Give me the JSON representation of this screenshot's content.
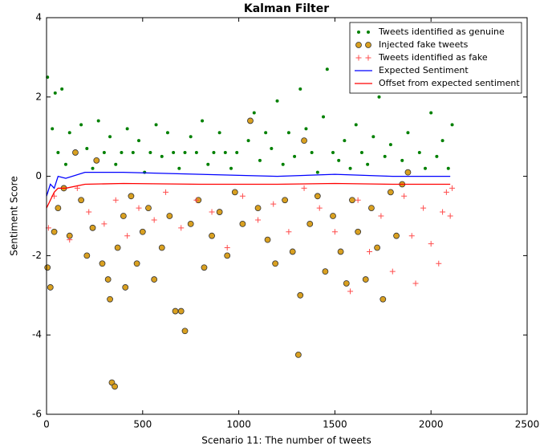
{
  "chart_data": {
    "type": "scatter",
    "title": "Kalman Filter",
    "x_label": "Scenario  11: The number of tweets",
    "y_label": "Sentiment Score",
    "xlim": [
      0,
      2500
    ],
    "xticks": [
      0,
      500,
      1000,
      1500,
      2000,
      2500
    ],
    "ylim": [
      -6,
      4
    ],
    "yticks": [
      -6,
      -4,
      -2,
      0,
      2,
      4
    ],
    "grid": false,
    "legend": "upper right",
    "series": [
      {
        "name": "Tweets identified as genuine",
        "marker": "dot",
        "color": "#008000",
        "x": [
          5,
          30,
          45,
          60,
          80,
          100,
          120,
          150,
          180,
          210,
          240,
          270,
          300,
          330,
          360,
          390,
          420,
          450,
          480,
          510,
          540,
          570,
          600,
          630,
          660,
          690,
          720,
          750,
          780,
          810,
          840,
          870,
          900,
          930,
          960,
          990,
          1050,
          1080,
          1110,
          1140,
          1170,
          1200,
          1230,
          1260,
          1290,
          1320,
          1350,
          1380,
          1410,
          1440,
          1460,
          1490,
          1520,
          1550,
          1580,
          1610,
          1640,
          1670,
          1700,
          1730,
          1760,
          1790,
          1820,
          1850,
          1880,
          1910,
          1940,
          1970,
          2000,
          2030,
          2060,
          2090,
          2110
        ],
        "values": [
          2.5,
          1.2,
          2.1,
          0.6,
          2.2,
          0.3,
          1.1,
          0.6,
          1.3,
          0.7,
          0.2,
          1.4,
          0.6,
          1.0,
          0.3,
          0.6,
          1.2,
          0.6,
          0.9,
          0.1,
          0.6,
          1.3,
          0.5,
          1.1,
          0.6,
          0.2,
          0.6,
          1.0,
          0.6,
          1.4,
          0.3,
          0.6,
          1.1,
          0.6,
          0.2,
          0.6,
          0.9,
          1.6,
          0.4,
          1.1,
          0.7,
          1.9,
          0.3,
          1.1,
          0.5,
          2.2,
          1.2,
          0.6,
          0.1,
          1.5,
          2.7,
          0.6,
          0.4,
          0.9,
          0.2,
          1.3,
          0.6,
          0.3,
          1.0,
          2.0,
          0.5,
          0.8,
          2.2,
          0.4,
          1.1,
          2.3,
          0.6,
          0.2,
          1.6,
          0.5,
          0.9,
          0.2,
          1.3
        ]
      },
      {
        "name": "Injected fake tweets",
        "marker": "circle",
        "color": "#d9a020",
        "x": [
          5,
          20,
          40,
          60,
          90,
          120,
          150,
          180,
          210,
          240,
          260,
          290,
          320,
          330,
          340,
          355,
          370,
          400,
          410,
          440,
          470,
          500,
          530,
          560,
          600,
          640,
          670,
          700,
          720,
          750,
          790,
          820,
          860,
          900,
          940,
          980,
          1020,
          1060,
          1100,
          1150,
          1190,
          1240,
          1280,
          1310,
          1320,
          1340,
          1370,
          1410,
          1450,
          1490,
          1530,
          1560,
          1590,
          1620,
          1660,
          1690,
          1720,
          1750,
          1790,
          1820,
          1850,
          1880
        ],
        "values": [
          -2.3,
          -2.8,
          -1.4,
          -0.8,
          -0.3,
          -1.5,
          0.6,
          -0.6,
          -2.0,
          -1.3,
          0.4,
          -2.2,
          -2.6,
          -3.1,
          -5.2,
          -5.3,
          -1.8,
          -1.0,
          -2.8,
          -0.5,
          -2.2,
          -1.4,
          -0.8,
          -2.6,
          -1.8,
          -1.0,
          -3.4,
          -3.4,
          -3.9,
          -1.2,
          -0.6,
          -2.3,
          -1.5,
          -0.9,
          -2.0,
          -0.4,
          -1.2,
          1.4,
          -0.8,
          -1.6,
          -2.2,
          -0.6,
          -1.9,
          -4.5,
          -3.0,
          0.9,
          -1.2,
          -0.5,
          -2.4,
          -1.0,
          -1.9,
          -2.7,
          -0.6,
          -1.4,
          -2.6,
          -0.8,
          -1.8,
          -3.1,
          -0.4,
          -1.5,
          -0.2,
          0.1
        ]
      },
      {
        "name": "Tweets identified as fake",
        "marker": "plus",
        "color": "#ff4d4d",
        "x": [
          10,
          40,
          120,
          160,
          220,
          300,
          360,
          420,
          480,
          560,
          620,
          700,
          780,
          860,
          940,
          1020,
          1100,
          1180,
          1260,
          1340,
          1420,
          1500,
          1580,
          1620,
          1680,
          1740,
          1800,
          1860,
          1900,
          1920,
          1960,
          2000,
          2040,
          2060,
          2080,
          2100,
          2110
        ],
        "values": [
          -1.3,
          -0.5,
          -1.6,
          -0.3,
          -0.9,
          -1.2,
          -0.6,
          -1.5,
          -0.8,
          -1.1,
          -0.4,
          -1.3,
          -0.6,
          -0.9,
          -1.8,
          -0.5,
          -1.1,
          -0.7,
          -1.4,
          -0.3,
          -0.8,
          -1.4,
          -2.9,
          -0.6,
          -1.9,
          -1.0,
          -2.4,
          -0.5,
          -1.5,
          -2.7,
          -0.8,
          -1.7,
          -2.2,
          -0.9,
          -0.4,
          -1.0,
          -0.3
        ]
      },
      {
        "name": "Expected Sentiment",
        "marker": "line",
        "color": "#0000ff",
        "x": [
          0,
          20,
          40,
          60,
          100,
          200,
          400,
          800,
          1200,
          1500,
          1800,
          2100
        ],
        "values": [
          -0.5,
          -0.2,
          -0.3,
          0.0,
          -0.05,
          0.1,
          0.1,
          0.05,
          0.0,
          0.05,
          0.0,
          0.0
        ]
      },
      {
        "name": "Offset from expected sentiment",
        "marker": "line",
        "color": "#ff0000",
        "x": [
          0,
          20,
          40,
          60,
          100,
          200,
          400,
          800,
          1200,
          1500,
          1800,
          2100
        ],
        "values": [
          -0.8,
          -0.6,
          -0.4,
          -0.3,
          -0.3,
          -0.2,
          -0.18,
          -0.2,
          -0.2,
          -0.18,
          -0.2,
          -0.2
        ]
      }
    ]
  }
}
